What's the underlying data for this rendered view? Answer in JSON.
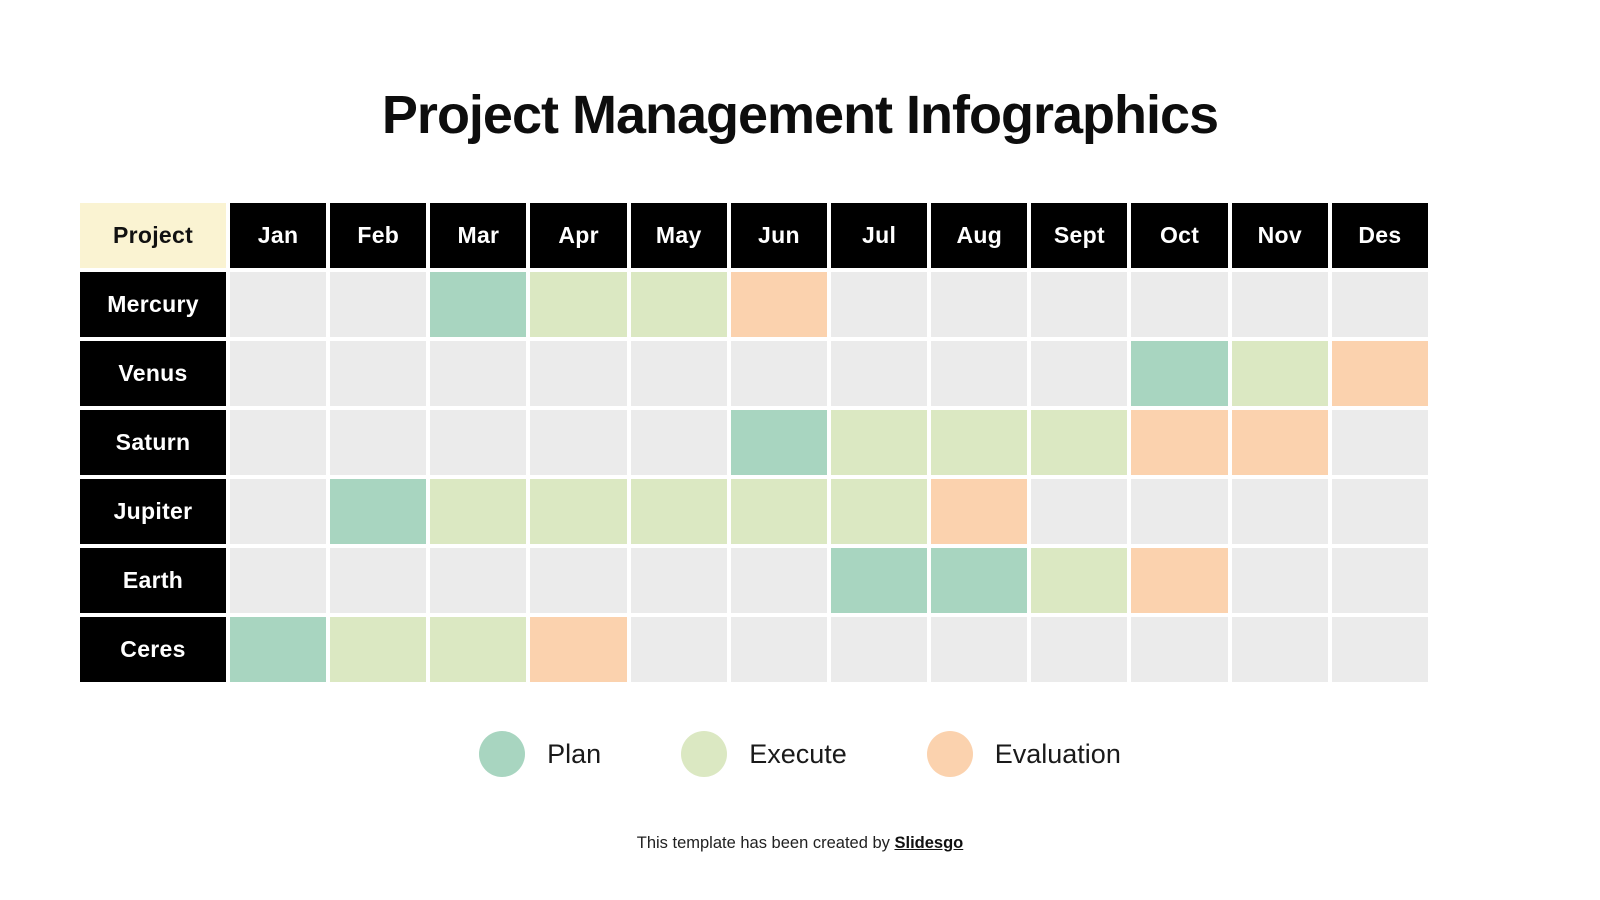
{
  "chart_data": {
    "type": "table",
    "subtype": "gantt",
    "title": "Project Management Infographics",
    "corner_label": "Project",
    "columns": [
      "Jan",
      "Feb",
      "Mar",
      "Apr",
      "May",
      "Jun",
      "Jul",
      "Aug",
      "Sept",
      "Oct",
      "Nov",
      "Des"
    ],
    "rows": [
      {
        "project": "Mercury",
        "phases": [
          "",
          "",
          "plan",
          "execute",
          "execute",
          "evaluation",
          "",
          "",
          "",
          "",
          "",
          ""
        ]
      },
      {
        "project": "Venus",
        "phases": [
          "",
          "",
          "",
          "",
          "",
          "",
          "",
          "",
          "",
          "plan",
          "execute",
          "evaluation"
        ]
      },
      {
        "project": "Saturn",
        "phases": [
          "",
          "",
          "",
          "",
          "",
          "plan",
          "execute",
          "execute",
          "execute",
          "evaluation",
          "evaluation",
          ""
        ]
      },
      {
        "project": "Jupiter",
        "phases": [
          "",
          "plan",
          "execute",
          "execute",
          "execute",
          "execute",
          "execute",
          "evaluation",
          "",
          "",
          "",
          ""
        ]
      },
      {
        "project": "Earth",
        "phases": [
          "",
          "",
          "",
          "",
          "",
          "",
          "plan",
          "plan",
          "execute",
          "evaluation",
          "",
          ""
        ]
      },
      {
        "project": "Ceres",
        "phases": [
          "plan",
          "execute",
          "execute",
          "evaluation",
          "",
          "",
          "",
          "",
          "",
          "",
          "",
          ""
        ]
      }
    ],
    "legend": [
      {
        "label": "Plan",
        "phase": "plan"
      },
      {
        "label": "Execute",
        "phase": "execute"
      },
      {
        "label": "Evaluation",
        "phase": "evaluation"
      }
    ],
    "legend_position": "bottom-center"
  },
  "colors": {
    "plan": "#A8D5C0",
    "execute": "#DBE8C2",
    "evaluation": "#FBD2AE",
    "empty": "#EBEBEB",
    "header_bg": "#000000",
    "header_text": "#FFFFFF",
    "corner_bg": "#FAF3D2"
  },
  "footer": {
    "prefix": "This template has been created by ",
    "brand": "Slidesgo"
  }
}
